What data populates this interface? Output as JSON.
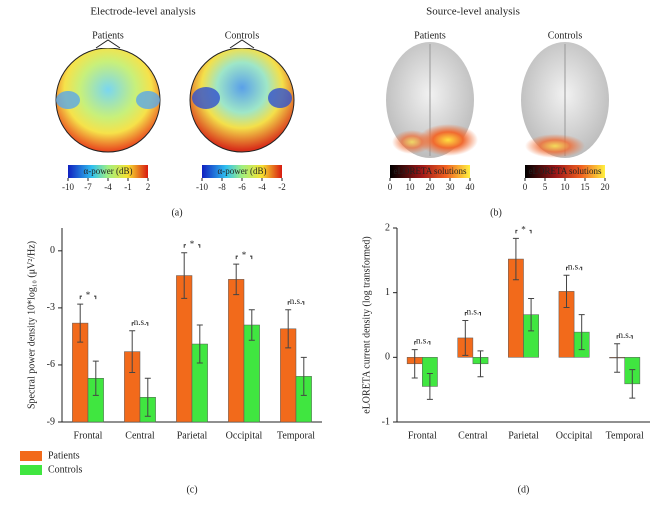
{
  "panel_a": {
    "title": "Electrode-level analysis",
    "caption": "(a)",
    "maps": [
      {
        "label": "Patients",
        "colorbar_label": "α-power (dB)",
        "ticks": [
          -10,
          -7,
          -4,
          -1,
          2
        ]
      },
      {
        "label": "Controls",
        "colorbar_label": "α-power (dB)",
        "ticks": [
          -10,
          -8,
          -6,
          -4,
          -2
        ]
      }
    ]
  },
  "panel_b": {
    "title": "Source-level analysis",
    "caption": "(b)",
    "maps": [
      {
        "label": "Patients",
        "colorbar_label": "eLORETA solutions",
        "ticks": [
          0,
          10,
          20,
          30,
          40
        ]
      },
      {
        "label": "Controls",
        "colorbar_label": "eLORETA solutions",
        "ticks": [
          0,
          5,
          10,
          15,
          20
        ]
      }
    ]
  },
  "chart_data": [
    {
      "type": "bar",
      "ylabel": "Spectral power density 10*log₁₀ (μV²/Hz)",
      "caption": "(c)",
      "categories": [
        "Frontal",
        "Central",
        "Parietal",
        "Occipital",
        "Temporal"
      ],
      "series": [
        {
          "name": "Patients",
          "color": "#f26a1b",
          "values": [
            -3.8,
            -5.3,
            -1.3,
            -1.5,
            -4.1
          ],
          "errors": [
            1.0,
            1.1,
            1.2,
            0.8,
            1.0
          ]
        },
        {
          "name": "Controls",
          "color": "#40e640",
          "values": [
            -6.7,
            -7.7,
            -4.9,
            -3.9,
            -6.6
          ],
          "errors": [
            0.9,
            1.0,
            1.0,
            0.8,
            1.0
          ]
        }
      ],
      "annotations": [
        "*",
        "n.s.",
        "*",
        "*",
        "n.s."
      ],
      "ylim": [
        -9,
        1.2
      ],
      "yticks": [
        -9,
        -6,
        -3,
        0
      ],
      "legend": "bottom-left"
    },
    {
      "type": "bar",
      "ylabel": "eLORETA current density (log transformed)",
      "caption": "(d)",
      "categories": [
        "Frontal",
        "Central",
        "Parietal",
        "Occipital",
        "Temporal"
      ],
      "series": [
        {
          "color": "#f26a1b",
          "values": [
            -0.1,
            0.3,
            1.52,
            1.02,
            -0.01
          ],
          "errors": [
            0.22,
            0.27,
            0.32,
            0.25,
            0.22
          ]
        },
        {
          "color": "#40e640",
          "values": [
            -0.45,
            -0.1,
            0.66,
            0.39,
            -0.41
          ],
          "errors": [
            0.2,
            0.2,
            0.25,
            0.27,
            0.22
          ]
        }
      ],
      "annotations": [
        "n.s.",
        "n.s.",
        "*",
        "n.s.",
        "n.s."
      ],
      "ylim": [
        -1,
        2
      ],
      "yticks": [
        -1,
        0,
        1,
        2
      ]
    }
  ]
}
